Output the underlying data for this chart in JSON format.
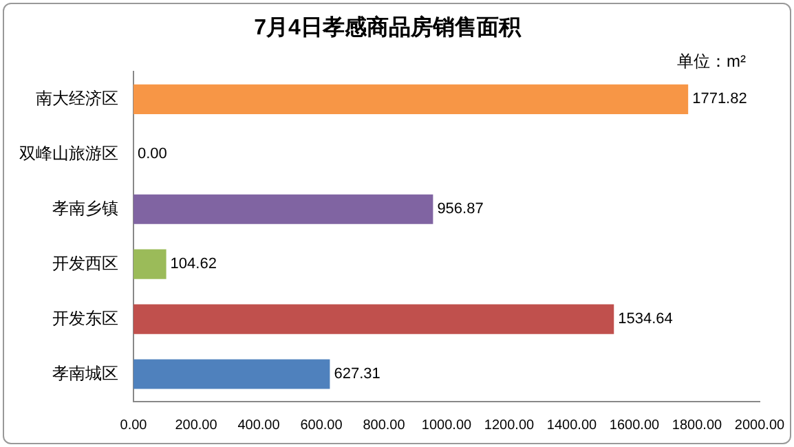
{
  "chart_data": {
    "type": "bar",
    "orientation": "horizontal",
    "title": "7月4日孝感商品房销售面积",
    "annotations": [
      "单位：m²"
    ],
    "categories": [
      "南大经济区",
      "双峰山旅游区",
      "孝南乡镇",
      "开发西区",
      "开发东区",
      "孝南城区"
    ],
    "values": [
      1771.82,
      0,
      956.87,
      104.62,
      1534.64,
      627.31
    ],
    "value_labels": [
      "1771.82",
      "0.00",
      "956.87",
      "104.62",
      "1534.64",
      "627.31"
    ],
    "colors": [
      "#f79646",
      "#4bacc6",
      "#8064a2",
      "#9bbb59",
      "#c0504d",
      "#4f81bd"
    ],
    "xlim": [
      0,
      2000
    ],
    "xticks": [
      {
        "value": 0,
        "label": "0.00"
      },
      {
        "value": 200,
        "label": "200.00"
      },
      {
        "value": 400,
        "label": "400.00"
      },
      {
        "value": 600,
        "label": "600.00"
      },
      {
        "value": 800,
        "label": "800.00"
      },
      {
        "value": 1000,
        "label": "1000.00"
      },
      {
        "value": 1200,
        "label": "1200.00"
      },
      {
        "value": 1400,
        "label": "1400.00"
      },
      {
        "value": 1600,
        "label": "1600.00"
      },
      {
        "value": 1800,
        "label": "1800.00"
      },
      {
        "value": 2000,
        "label": "2000.00"
      }
    ],
    "grid": false,
    "legend": false
  }
}
